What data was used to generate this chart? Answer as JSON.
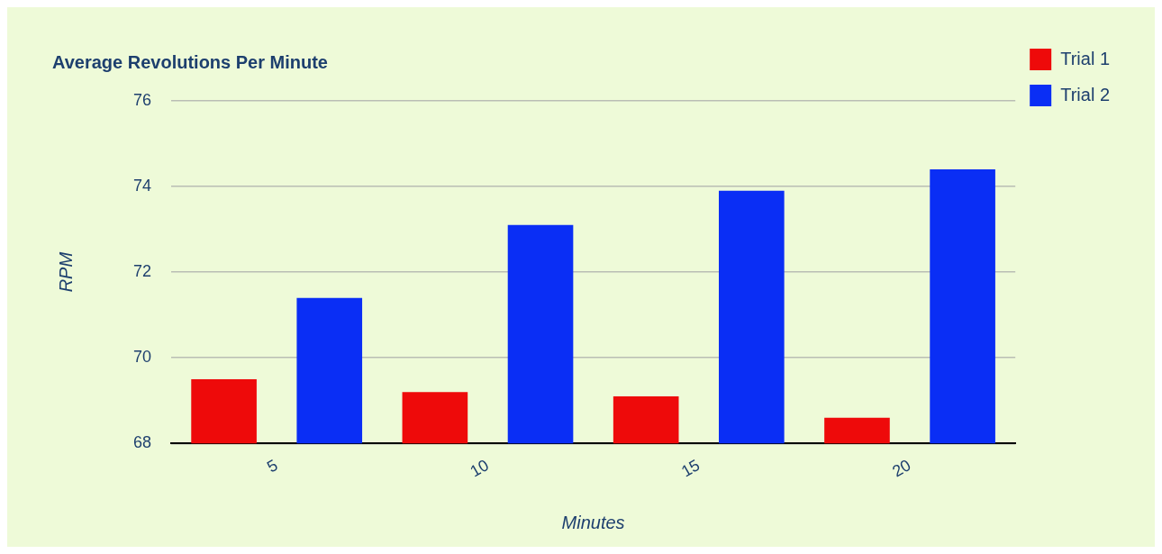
{
  "chart_data": {
    "type": "bar",
    "title": "Average Revolutions Per Minute",
    "xlabel": "Minutes",
    "ylabel": "RPM",
    "categories": [
      "5",
      "10",
      "15",
      "20"
    ],
    "series": [
      {
        "name": "Trial 1",
        "color": "#ee0a0a",
        "values": [
          69.5,
          69.2,
          69.1,
          68.6
        ]
      },
      {
        "name": "Trial 2",
        "color": "#0a2ef5",
        "values": [
          71.4,
          73.1,
          73.9,
          74.4
        ]
      }
    ],
    "ylim": [
      68,
      76
    ],
    "yticks": [
      68,
      70,
      72,
      74,
      76
    ],
    "grid": "y",
    "legend": "top right"
  }
}
